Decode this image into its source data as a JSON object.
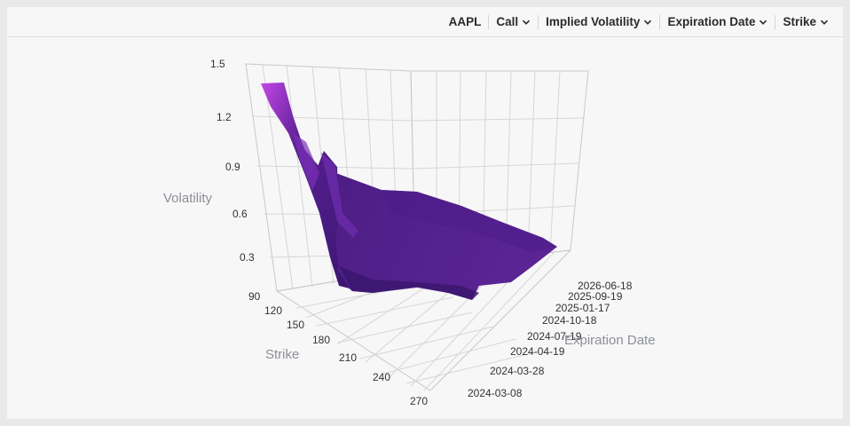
{
  "toolbar": {
    "ticker": "AAPL",
    "option_type": "Call",
    "metric": "Implied Volatility",
    "expiration": "Expiration Date",
    "strike": "Strike"
  },
  "colors": {
    "surface_dark": "#3a1670",
    "surface_mid": "#5b2095",
    "surface_light": "#c247e6"
  },
  "chart_data": {
    "type": "surface",
    "z_axis": {
      "title": "Volatility",
      "ticks": [
        "1.5",
        "1.2",
        "0.9",
        "0.6",
        "0.3"
      ]
    },
    "x_axis": {
      "title": "Strike",
      "ticks": [
        "90",
        "120",
        "150",
        "180",
        "210",
        "240",
        "270"
      ]
    },
    "y_axis": {
      "title": "Expiration Date",
      "ticks": [
        "2026-06-18",
        "2025-09-19",
        "2025-01-17",
        "2024-10-18",
        "2024-07-19",
        "2024-04-19",
        "2024-03-28",
        "2024-03-08"
      ]
    }
  }
}
